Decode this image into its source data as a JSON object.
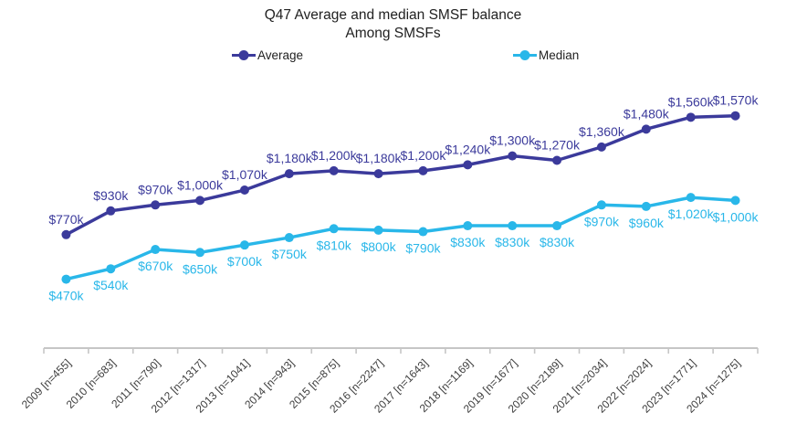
{
  "title": {
    "line1": "Q47 Average and median SMSF balance",
    "line2": "Among SMSFs"
  },
  "chart_data": {
    "type": "line",
    "title": "Q47 Average and median SMSF balance Among SMSFs",
    "categories": [
      "2009",
      "2010",
      "2011",
      "2012",
      "2013",
      "2014",
      "2015",
      "2016",
      "2017",
      "2018",
      "2019",
      "2020",
      "2021",
      "2022",
      "2023",
      "2024"
    ],
    "x_tick_labels": [
      "2009 [n=455]",
      "2010 [n=683]",
      "2011 [n=790]",
      "2012 [n=1317]",
      "2013 [n=1041]",
      "2014 [n=943]",
      "2015 [n=875]",
      "2016 [n=2247]",
      "2017 [n=1643]",
      "2018 [n=1169]",
      "2019 [n=1677]",
      "2020 [n=2189]",
      "2021 [n=2034]",
      "2022 [n=2024]",
      "2023 [n=1771]",
      "2024 [n=1275]"
    ],
    "ylim": [
      0,
      1900
    ],
    "grid": false,
    "legend_position": "top",
    "series": [
      {
        "name": "Average",
        "color": "#3b3a9b",
        "label_position": "above",
        "values": [
          770,
          930,
          970,
          1000,
          1070,
          1180,
          1200,
          1180,
          1200,
          1240,
          1300,
          1270,
          1360,
          1480,
          1560,
          1570
        ],
        "labels": [
          "$770k",
          "$930k",
          "$970k",
          "$1,000k",
          "$1,070k",
          "$1,180k",
          "$1,200k",
          "$1,180k",
          "$1,200k",
          "$1,240k",
          "$1,300k",
          "$1,270k",
          "$1,360k",
          "$1,480k",
          "$1,560k",
          "$1,570k"
        ]
      },
      {
        "name": "Median",
        "color": "#29b7e9",
        "label_position": "below",
        "values": [
          470,
          540,
          670,
          650,
          700,
          750,
          810,
          800,
          790,
          830,
          830,
          830,
          970,
          960,
          1020,
          1000
        ],
        "labels": [
          "$470k",
          "$540k",
          "$670k",
          "$650k",
          "$700k",
          "$750k",
          "$810k",
          "$800k",
          "$790k",
          "$830k",
          "$830k",
          "$830k",
          "$970k",
          "$960k",
          "$1,020k",
          "$1,000k"
        ]
      }
    ],
    "axis_color": "#c6c6c6",
    "tick_label_color": "#3d3d3d"
  }
}
